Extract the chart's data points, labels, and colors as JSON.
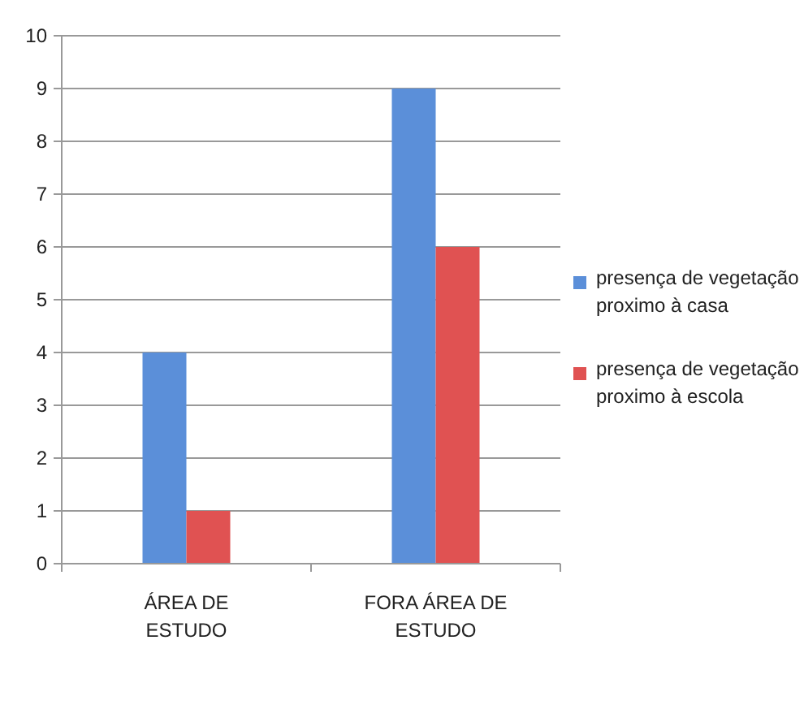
{
  "chart_data": {
    "type": "bar",
    "categories": [
      "ÁREA DE ESTUDO",
      "FORA ÁREA DE ESTUDO"
    ],
    "series": [
      {
        "name": "presença de vegetação proximo à casa",
        "color": "#5b8fd9",
        "values": [
          4,
          9
        ]
      },
      {
        "name": "presença de vegetação proximo à escola",
        "color": "#e05252",
        "values": [
          1,
          6
        ]
      }
    ],
    "ylim": [
      0,
      10
    ],
    "yticks": [
      0,
      1,
      2,
      3,
      4,
      5,
      6,
      7,
      8,
      9,
      10
    ],
    "grid": "y",
    "legend": "right"
  }
}
